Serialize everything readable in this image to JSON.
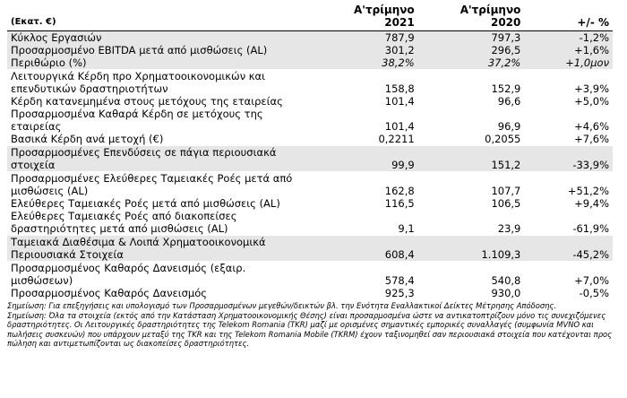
{
  "header": {
    "unit": "(Εκατ. €)",
    "columns": [
      [
        "Α'τρίμηνο",
        "2021"
      ],
      [
        "Α'τρίμηνο",
        "2020"
      ],
      [
        "+/- %"
      ]
    ]
  },
  "table": {
    "groups": [
      {
        "shaded": true,
        "rows": [
          {
            "label": "Κύκλος Εργασιών",
            "cells": [
              "787,9",
              "797,3",
              "-1,2%"
            ]
          },
          {
            "label": "Προσαρμοσμένο EBITDA μετά από μισθώσεις (AL)",
            "cells": [
              "301,2",
              "296,5",
              "+1,6%"
            ]
          },
          {
            "label": "Περιθώριο (%)",
            "cells": [
              "38,2%",
              "37,2%",
              "+1,0μον"
            ],
            "italic": true
          }
        ]
      },
      {
        "shaded": false,
        "rows": [
          {
            "label": "Λειτουργικά Κέρδη προ Χρηματοοικονομικών και επενδυτικών δραστηριοτήτων",
            "cells": [
              "158,8",
              "152,9",
              "+3,9%"
            ]
          },
          {
            "label": "Κέρδη κατανεμημένα στους μετόχους της εταιρείας",
            "cells": [
              "101,4",
              "96,6",
              "+5,0%"
            ]
          },
          {
            "label": "Προσαρμοσμένα Καθαρά Κέρδη σε μετόχους της εταιρείας",
            "cells": [
              "101,4",
              "96,9",
              "+4,6%"
            ]
          },
          {
            "label": "Βασικά Κέρδη ανά μετοχή (€)",
            "cells": [
              "0,2211",
              "0,2055",
              "+7,6%"
            ]
          }
        ]
      },
      {
        "shaded": true,
        "rows": [
          {
            "label": "Προσαρμοσμένες Επενδύσεις σε πάγια περιουσιακά στοιχεία",
            "cells": [
              "99,9",
              "151,2",
              "-33,9%"
            ]
          }
        ]
      },
      {
        "shaded": false,
        "rows": [
          {
            "label": "Προσαρμοσμένες Ελεύθερες Ταμειακές Ροές μετά από μισθώσεις (AL)",
            "cells": [
              "162,8",
              "107,7",
              "+51,2%"
            ]
          },
          {
            "label": "Ελεύθερες Ταμειακές Ροές μετά από μισθώσεις (AL)",
            "cells": [
              "116,5",
              "106,5",
              "+9,4%"
            ]
          },
          {
            "label": "Ελεύθερες Ταμειακές Ροές από διακοπείσες δραστηριότητες μετά από μισθώσεις (AL)",
            "cells": [
              "9,1",
              "23,9",
              "-61,9%"
            ]
          }
        ]
      },
      {
        "shaded": true,
        "rows": [
          {
            "label": "Ταμειακά Διαθέσιμα & Λοιπά Χρηματοοικονομικά Περιουσιακά Στοιχεία",
            "cells": [
              "608,4",
              "1.109,3",
              "-45,2%"
            ]
          }
        ]
      },
      {
        "shaded": false,
        "rows": [
          {
            "label": "Προσαρμοσμένος Καθαρός Δανεισμός (εξαιρ. μισθώσεων)",
            "cells": [
              "578,4",
              "540,8",
              "+7,0%"
            ]
          },
          {
            "label": "Προσαρμοσμένος Καθαρός Δανεισμός",
            "cells": [
              "925,3",
              "930,0",
              "-0,5%"
            ]
          }
        ]
      }
    ]
  },
  "notes": [
    "Σημείωση: Για επεξηγήσεις και υπολογισμό των Προσαρμοσμένων μεγεθών/δεικτών βλ. την Ενότητα Εναλλακτικοί Δείκτες Μέτρησης Απόδοσης.",
    "Σημείωση: Όλα τα στοιχεία (εκτός από την Κατάσταση Χρηματοοικονομικής Θέσης) είναι προσαρμοσμένα ώστε να αντικατοπτρίζουν μόνο τις συνεχιζόμενες δραστηριότητες. Οι Λειτουργικές δραστηριότητες της Telekom Romania (TKR) μαζί με ορισμένες σημαντικές εμπορικές συναλλαγές (συμφωνία MVNO και πωλήσεις συσκευών) που υπάρχουν μεταξύ της TKR και της Telekom Romania Mobile (TKRM) έχουν ταξινομηθεί σαν περιουσιακά στοιχεία που κατέχονται προς πώληση και αντιμετωπίζονται ως διακοπείσες δραστηριότητες."
  ]
}
